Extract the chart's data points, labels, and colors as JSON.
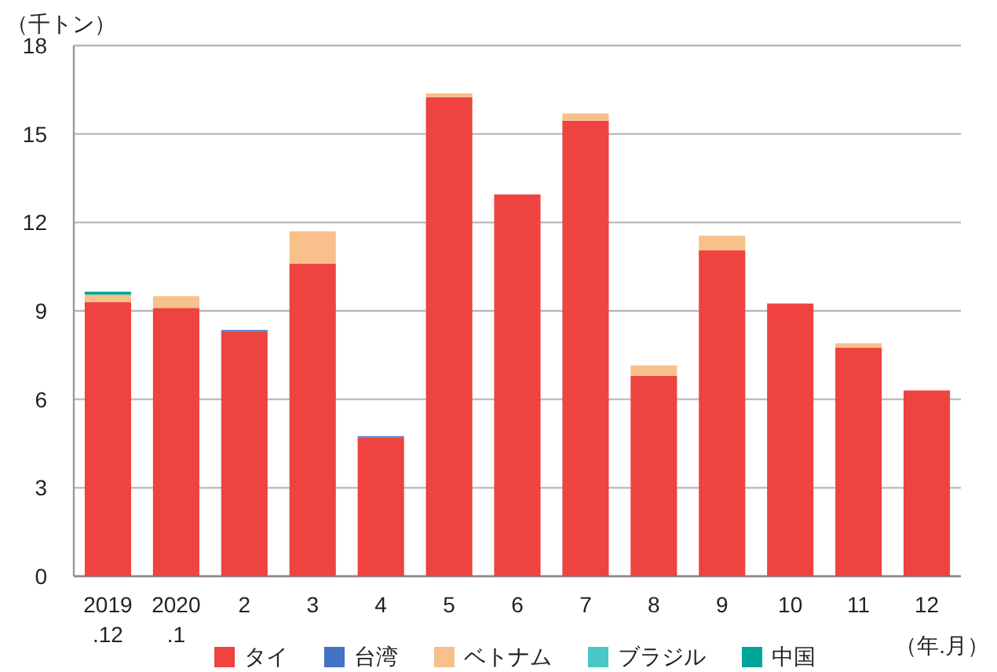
{
  "chart_data": {
    "type": "bar",
    "stacked": true,
    "ylabel": "（千トン）",
    "annotations": [
      "（年.月）"
    ],
    "categories": [
      "2019\n.12",
      "2020\n.1",
      "2",
      "3",
      "4",
      "5",
      "6",
      "7",
      "8",
      "9",
      "10",
      "11",
      "12"
    ],
    "series": [
      {
        "name": "タイ",
        "color": "#ee4340",
        "values": [
          9.3,
          9.1,
          8.3,
          10.6,
          4.7,
          16.25,
          12.95,
          15.45,
          6.8,
          11.05,
          9.25,
          7.75,
          6.3
        ]
      },
      {
        "name": "台湾",
        "color": "#4472c4",
        "values": [
          0,
          0,
          0.05,
          0,
          0.05,
          0,
          0,
          0,
          0,
          0,
          0,
          0,
          0
        ]
      },
      {
        "name": "ベトナム",
        "color": "#f8c08a",
        "values": [
          0.25,
          0.4,
          0,
          1.1,
          0,
          0.13,
          0,
          0.25,
          0.35,
          0.5,
          0,
          0.15,
          0
        ]
      },
      {
        "name": "ブラジル",
        "color": "#4bc6c6",
        "values": [
          0,
          0,
          0,
          0,
          0,
          0,
          0,
          0,
          0,
          0,
          0,
          0,
          0
        ]
      },
      {
        "name": "中国",
        "color": "#00a59a",
        "values": [
          0.1,
          0,
          0,
          0,
          0,
          0,
          0,
          0,
          0,
          0,
          0,
          0,
          0
        ]
      }
    ],
    "ylim": [
      0,
      18
    ],
    "yticks": [
      0,
      3,
      6,
      9,
      12,
      15,
      18
    ],
    "grid": "y",
    "legend": "bottom"
  }
}
